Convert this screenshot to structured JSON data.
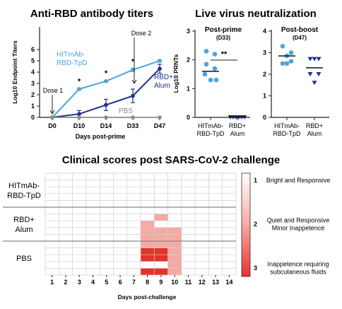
{
  "colors": {
    "hitmab": "#4ea3dd",
    "rbd_alum": "#1e2f8c",
    "pbs": "#8c8c8c",
    "heat_high": "#e8302a",
    "heat_mid": "#f7a9a4",
    "heat_low": "#ffffff",
    "grid": "#cfcfcf"
  },
  "chart_data": [
    {
      "type": "line",
      "title": "Anti-RBD antibody titers",
      "xlabel": "Days post-prime",
      "ylabel": "Log10 Endpoint Titers",
      "ylim": [
        0,
        6
      ],
      "yticks": [
        "0",
        "1",
        "2",
        "3",
        "4",
        "5",
        "6"
      ],
      "categories": [
        "D0",
        "D10",
        "D14",
        "D33",
        "D47"
      ],
      "series": [
        {
          "name": "HITmAb-RBD-TpD",
          "label_lines": [
            "HITmAb-",
            "RBD-TpD"
          ],
          "color": "#4ea3dd",
          "values": [
            0,
            2.5,
            3.2,
            4.2,
            5.0
          ],
          "errors": [
            0,
            0.1,
            0.1,
            0.15,
            0.1
          ]
        },
        {
          "name": "RBD+ Alum",
          "label_lines": [
            "RBD+",
            "Alum"
          ],
          "color": "#1e2f8c",
          "values": [
            0,
            0.3,
            1.1,
            1.9,
            4.3
          ],
          "errors": [
            0,
            0.3,
            0.5,
            0.6,
            0.4
          ]
        },
        {
          "name": "PBS",
          "label_lines": [
            "PBS"
          ],
          "color": "#8c8c8c",
          "values": [
            0,
            0,
            0,
            0,
            0
          ],
          "errors": [
            0,
            0,
            0,
            0,
            0
          ]
        }
      ],
      "significance": [
        {
          "category": "D10",
          "label": "*"
        },
        {
          "category": "D14",
          "label": "*"
        },
        {
          "category": "D33",
          "label": "*"
        }
      ],
      "annotations": [
        {
          "category": "D0",
          "label": "Dose 1"
        },
        {
          "category": "D33",
          "label": "Dose 2"
        }
      ]
    },
    {
      "type": "scatter",
      "title": "Live virus neutralization",
      "panel_title": "Post-prime",
      "panel_subtitle": "(D33)",
      "ylabel": "Log10 PRNTs",
      "ylim": [
        0,
        3
      ],
      "yticks": [
        "0",
        "1",
        "2",
        "3"
      ],
      "categories": [
        [
          "HITmAb-",
          "RBD-TpD"
        ],
        [
          "RBD+",
          "Alum"
        ]
      ],
      "groups": [
        {
          "color": "#4ea3dd",
          "marker": "circle",
          "median": 1.6,
          "points": [
            2.3,
            2.2,
            1.85,
            1.7,
            1.5,
            1.3,
            1.3
          ]
        },
        {
          "color": "#1e2f8c",
          "marker": "triangle",
          "median": 0.02,
          "points": [
            0,
            0,
            0,
            0,
            0,
            0
          ]
        }
      ],
      "significance": "**"
    },
    {
      "type": "scatter",
      "panel_title": "Post-boost",
      "panel_subtitle": "(D47)",
      "ylim": [
        0,
        4
      ],
      "yticks": [
        "0",
        "1",
        "2",
        "3",
        "4"
      ],
      "categories": [
        [
          "HITmAb-",
          "RBD-TpD"
        ],
        [
          "RBD+",
          "Alum"
        ]
      ],
      "groups": [
        {
          "color": "#4ea3dd",
          "marker": "circle",
          "median": 2.85,
          "points": [
            3.3,
            3.0,
            2.85,
            2.5,
            2.6,
            2.5
          ]
        },
        {
          "color": "#1e2f8c",
          "marker": "triangle",
          "median": 2.3,
          "points": [
            2.7,
            2.7,
            2.7,
            2.0,
            2.0,
            1.6
          ]
        }
      ]
    },
    {
      "type": "heatmap",
      "title": "Clinical scores post SARS-CoV-2 challenge",
      "xlabel": "Days post-challenge",
      "x": [
        "1",
        "2",
        "3",
        "4",
        "5",
        "6",
        "7",
        "8",
        "9",
        "10",
        "11",
        "12",
        "13",
        "14"
      ],
      "groups": [
        {
          "label_lines": [
            "HITmAb-",
            "RBD-TpD"
          ],
          "rows": [
            [
              1,
              1,
              1,
              1,
              1,
              1,
              1,
              1,
              1,
              1,
              1,
              1,
              1,
              1
            ],
            [
              1,
              1,
              1,
              1,
              1,
              1,
              1,
              1,
              1,
              1,
              1,
              1,
              1,
              1
            ],
            [
              1,
              1,
              1,
              1,
              1,
              1,
              1,
              1,
              1,
              1,
              1,
              1,
              1,
              1
            ],
            [
              1,
              1,
              1,
              1,
              1,
              1,
              1,
              1,
              1,
              1,
              1,
              1,
              1,
              1
            ],
            [
              1,
              1,
              1,
              1,
              1,
              1,
              1,
              1,
              1,
              1,
              1,
              1,
              1,
              1
            ]
          ]
        },
        {
          "label_lines": [
            "RBD+",
            "Alum"
          ],
          "rows": [
            [
              1,
              1,
              1,
              1,
              1,
              1,
              1,
              1,
              1,
              1,
              1,
              1,
              1,
              1
            ],
            [
              1,
              1,
              1,
              1,
              1,
              1,
              1,
              1,
              2,
              1,
              1,
              1,
              1,
              1
            ],
            [
              1,
              1,
              1,
              1,
              1,
              1,
              1,
              2,
              1,
              1,
              1,
              1,
              1,
              1
            ],
            [
              1,
              1,
              1,
              1,
              1,
              1,
              1,
              2,
              2,
              2,
              1,
              1,
              1,
              1
            ],
            [
              1,
              1,
              1,
              1,
              1,
              1,
              1,
              2,
              2,
              2,
              1,
              1,
              1,
              1
            ]
          ]
        },
        {
          "label_lines": [
            "PBS"
          ],
          "rows": [
            [
              1,
              1,
              1,
              1,
              1,
              1,
              1,
              2,
              2,
              2,
              1,
              1,
              1,
              1
            ],
            [
              1,
              1,
              1,
              1,
              1,
              1,
              1,
              3,
              3,
              2,
              1,
              1,
              1,
              1
            ],
            [
              1,
              1,
              1,
              1,
              1,
              1,
              1,
              3,
              3,
              2,
              1,
              1,
              1,
              1
            ],
            [
              1,
              1,
              1,
              1,
              1,
              1,
              1,
              1,
              1,
              2,
              1,
              1,
              1,
              1
            ],
            [
              1,
              1,
              1,
              1,
              1,
              1,
              1,
              3,
              3,
              2,
              1,
              1,
              1,
              1
            ]
          ]
        }
      ],
      "legend": [
        {
          "score": "1",
          "lines": [
            "Bright and Responsive"
          ]
        },
        {
          "score": "2",
          "lines": [
            "Quiet and Responsive",
            "Minor Inappetence"
          ]
        },
        {
          "score": "3",
          "lines": [
            "Inappetence requiring",
            "subcutaneous fluids"
          ]
        }
      ]
    }
  ]
}
